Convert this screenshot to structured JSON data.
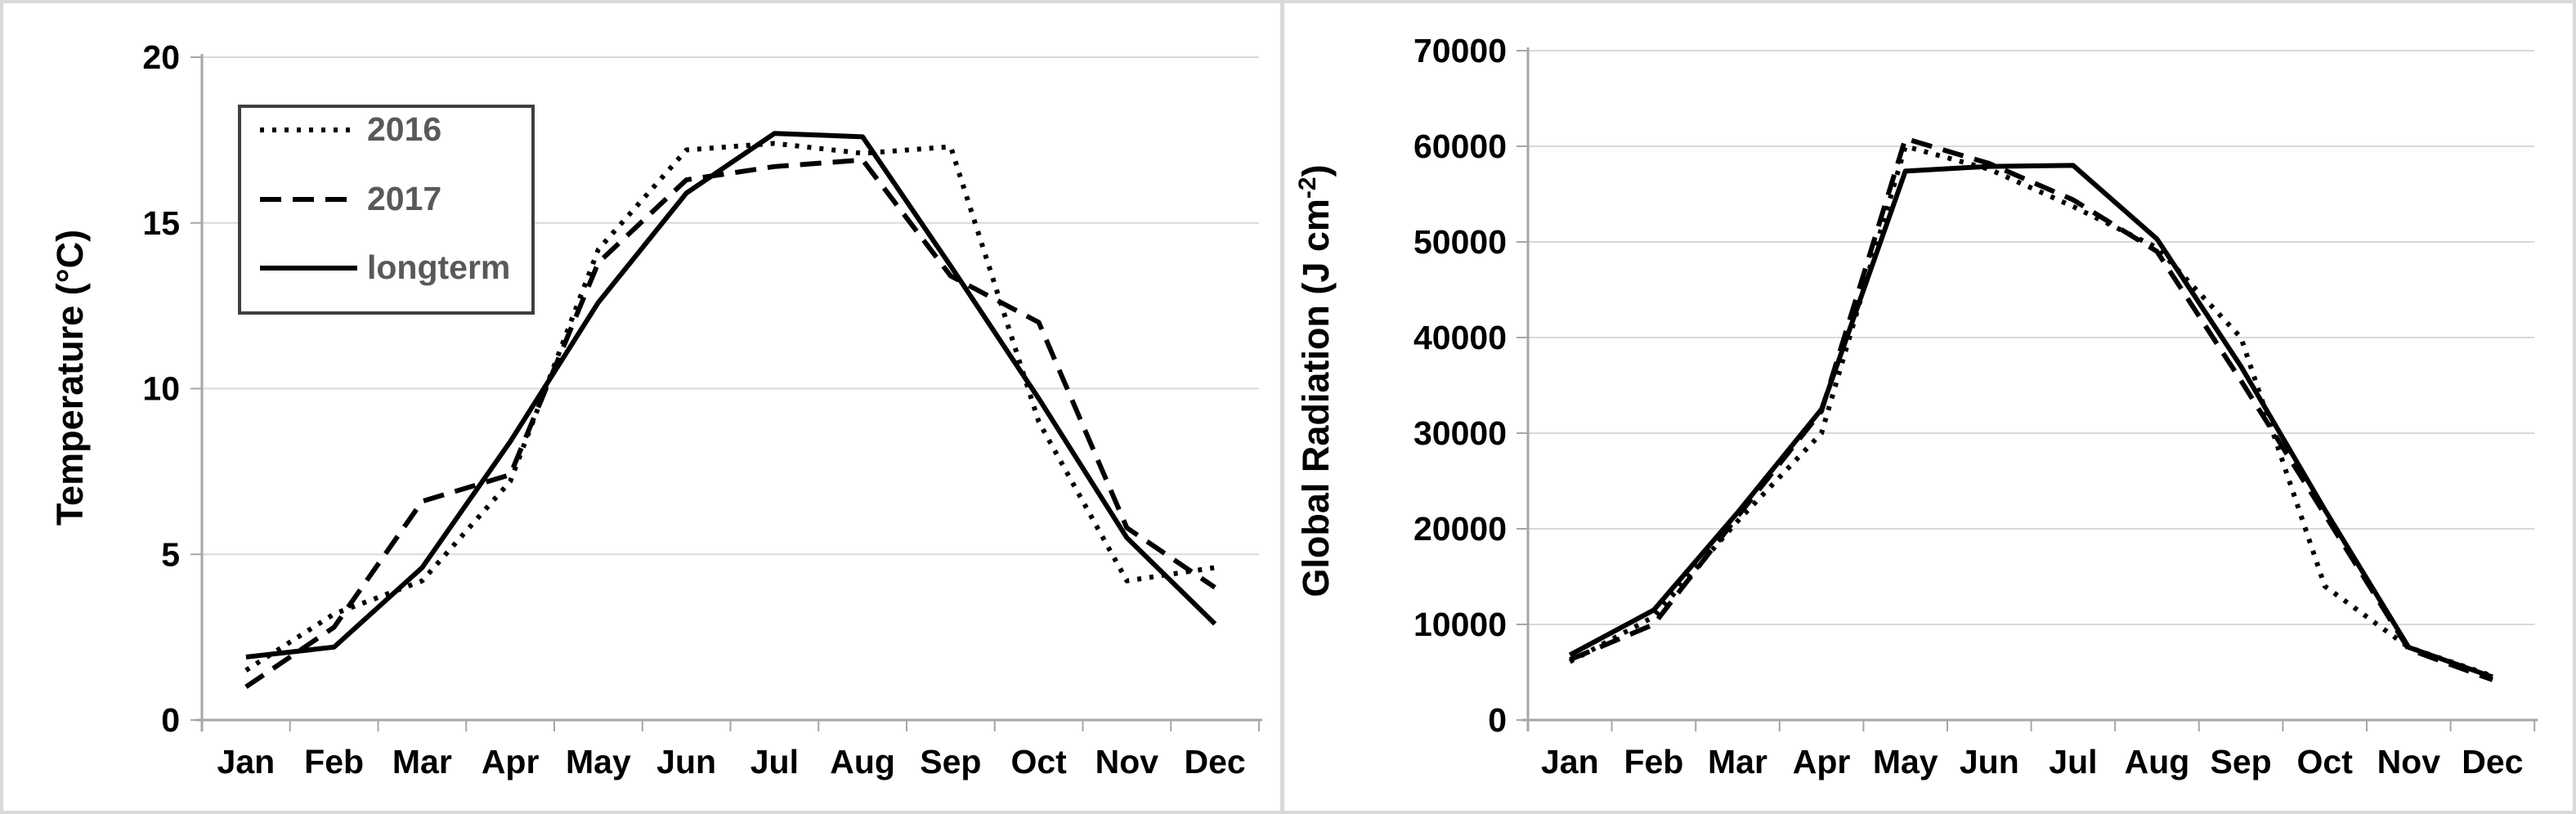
{
  "page": {
    "background": "#ffffff",
    "frame_border_color": "#d9d9d9"
  },
  "chart_data": [
    {
      "id": "temperature",
      "type": "line",
      "title": "",
      "xlabel": "",
      "ylabel": "Temperature (°C)",
      "ylabel_sup": "",
      "ylabel_close": "",
      "categories": [
        "Jan",
        "Feb",
        "Mar",
        "Apr",
        "May",
        "Jun",
        "Jul",
        "Aug",
        "Sep",
        "Oct",
        "Nov",
        "Dec"
      ],
      "ylim": [
        0,
        20
      ],
      "yticks": [
        0,
        5,
        10,
        15,
        20
      ],
      "ytick_labels": [
        "0",
        "5",
        "10",
        "15",
        "20"
      ],
      "grid": true,
      "legend": {
        "visible": true,
        "position": "top-left",
        "entries": [
          "2016",
          "2017",
          "longterm"
        ]
      },
      "series": [
        {
          "name": "2016",
          "line_style": "dotted",
          "color": "#000000",
          "values": [
            1.5,
            3.2,
            4.2,
            7.2,
            14.2,
            17.2,
            17.4,
            17.1,
            17.3,
            9.0,
            4.2,
            4.6
          ]
        },
        {
          "name": "2017",
          "line_style": "dashed",
          "color": "#000000",
          "values": [
            1.0,
            2.8,
            6.6,
            7.4,
            13.8,
            16.3,
            16.7,
            16.9,
            13.4,
            12.0,
            5.8,
            4.0
          ]
        },
        {
          "name": "longterm",
          "line_style": "solid",
          "color": "#000000",
          "values": [
            1.9,
            2.2,
            4.6,
            8.4,
            12.6,
            15.9,
            17.7,
            17.6,
            13.7,
            9.7,
            5.5,
            2.9
          ]
        }
      ],
      "axis_color": "#a6a6a6",
      "gridline_color": "#d9d9d9",
      "legend_border_color": "#3f3f3f",
      "legend_text_color": "#595959",
      "text_color": "#000000"
    },
    {
      "id": "radiation",
      "type": "line",
      "title": "",
      "xlabel": "",
      "ylabel": "Global Radiation (J cm",
      "ylabel_sup": "-2",
      "ylabel_close": ")",
      "categories": [
        "Jan",
        "Feb",
        "Mar",
        "Apr",
        "May",
        "Jun",
        "Jul",
        "Aug",
        "Sep",
        "Oct",
        "Nov",
        "Dec"
      ],
      "ylim": [
        0,
        70000
      ],
      "yticks": [
        0,
        10000,
        20000,
        30000,
        40000,
        50000,
        60000,
        70000
      ],
      "ytick_labels": [
        "0",
        "10000",
        "20000",
        "30000",
        "40000",
        "50000",
        "60000",
        "70000"
      ],
      "grid": true,
      "legend": {
        "visible": false,
        "position": "none",
        "entries": []
      },
      "series": [
        {
          "name": "2016",
          "line_style": "dotted",
          "color": "#000000",
          "values": [
            6100,
            10800,
            20800,
            30000,
            60000,
            57600,
            53700,
            49400,
            40000,
            14000,
            7600,
            4600
          ]
        },
        {
          "name": "2017",
          "line_style": "dashed",
          "color": "#000000",
          "values": [
            6300,
            10000,
            21300,
            32300,
            60800,
            58200,
            54400,
            49000,
            35500,
            21500,
            7400,
            4200
          ]
        },
        {
          "name": "longterm",
          "line_style": "solid",
          "color": "#000000",
          "values": [
            6800,
            11500,
            21700,
            32500,
            57400,
            57900,
            58000,
            50300,
            37000,
            22000,
            7600,
            4500
          ]
        }
      ],
      "axis_color": "#a6a6a6",
      "gridline_color": "#d9d9d9",
      "legend_border_color": "#3f3f3f",
      "legend_text_color": "#595959",
      "text_color": "#000000"
    }
  ]
}
